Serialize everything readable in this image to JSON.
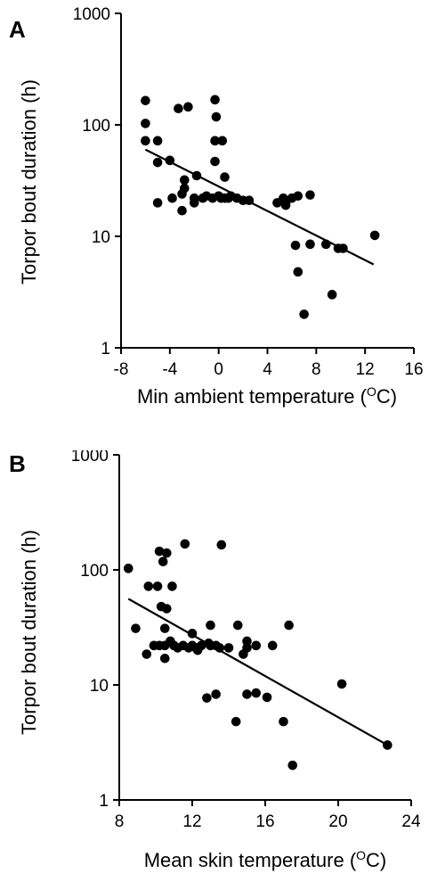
{
  "chart_data": [
    {
      "type": "scatter",
      "panel_label": "A",
      "title": "",
      "xlabel": "Min ambient temperature (",
      "xlabel_unit_o": "O",
      "xlabel_unit_c": "C)",
      "ylabel": "Torpor bout duration (h)",
      "xlim": [
        -8,
        16
      ],
      "ylim": [
        1,
        1000
      ],
      "yscale": "log",
      "x_ticks": [
        "-8",
        "-4",
        "0",
        "4",
        "8",
        "12",
        "16"
      ],
      "y_ticks": [
        "1",
        "10",
        "100",
        "1000"
      ],
      "grid": false,
      "points": [
        {
          "x": -6.0,
          "y": 165
        },
        {
          "x": -6.0,
          "y": 103
        },
        {
          "x": -6.0,
          "y": 72
        },
        {
          "x": -5.0,
          "y": 72
        },
        {
          "x": -5.0,
          "y": 46
        },
        {
          "x": -5.0,
          "y": 20
        },
        {
          "x": -4.0,
          "y": 48
        },
        {
          "x": -3.8,
          "y": 22
        },
        {
          "x": -3.3,
          "y": 140
        },
        {
          "x": -3.0,
          "y": 24
        },
        {
          "x": -3.0,
          "y": 17
        },
        {
          "x": -2.8,
          "y": 32
        },
        {
          "x": -2.8,
          "y": 27
        },
        {
          "x": -2.5,
          "y": 145
        },
        {
          "x": -2.0,
          "y": 22
        },
        {
          "x": -2.0,
          "y": 20
        },
        {
          "x": -1.8,
          "y": 35
        },
        {
          "x": -1.3,
          "y": 22
        },
        {
          "x": -1.0,
          "y": 23
        },
        {
          "x": -0.5,
          "y": 22
        },
        {
          "x": -0.3,
          "y": 168
        },
        {
          "x": -0.2,
          "y": 118
        },
        {
          "x": -0.3,
          "y": 72
        },
        {
          "x": -0.3,
          "y": 47
        },
        {
          "x": 0.0,
          "y": 23
        },
        {
          "x": 0.2,
          "y": 22
        },
        {
          "x": 0.3,
          "y": 72
        },
        {
          "x": 0.5,
          "y": 34
        },
        {
          "x": 0.5,
          "y": 22
        },
        {
          "x": 0.8,
          "y": 22
        },
        {
          "x": 1.0,
          "y": 23
        },
        {
          "x": 1.5,
          "y": 22
        },
        {
          "x": 2.0,
          "y": 21
        },
        {
          "x": 2.5,
          "y": 21
        },
        {
          "x": 4.8,
          "y": 20
        },
        {
          "x": 5.3,
          "y": 22
        },
        {
          "x": 5.5,
          "y": 20
        },
        {
          "x": 5.5,
          "y": 19
        },
        {
          "x": 6.0,
          "y": 22
        },
        {
          "x": 6.5,
          "y": 23
        },
        {
          "x": 6.3,
          "y": 8.3
        },
        {
          "x": 6.5,
          "y": 4.8
        },
        {
          "x": 7.0,
          "y": 2.0
        },
        {
          "x": 7.5,
          "y": 8.5
        },
        {
          "x": 7.5,
          "y": 23.5
        },
        {
          "x": 8.8,
          "y": 8.5
        },
        {
          "x": 9.3,
          "y": 3.0
        },
        {
          "x": 9.8,
          "y": 7.8
        },
        {
          "x": 10.2,
          "y": 7.8
        },
        {
          "x": 12.8,
          "y": 10.2
        }
      ],
      "trendline": {
        "x": [
          -6.0,
          12.7
        ],
        "y": [
          60,
          5.6
        ]
      }
    },
    {
      "type": "scatter",
      "panel_label": "B",
      "title": "",
      "xlabel": "Mean skin temperature (",
      "xlabel_unit_o": "O",
      "xlabel_unit_c": "C)",
      "ylabel": "Torpor bout duration (h)",
      "xlim": [
        8,
        24
      ],
      "ylim": [
        1,
        1000
      ],
      "yscale": "log",
      "x_ticks": [
        "8",
        "12",
        "16",
        "20",
        "24"
      ],
      "y_ticks": [
        "1",
        "10",
        "100",
        "1000"
      ],
      "grid": false,
      "points": [
        {
          "x": 8.5,
          "y": 103
        },
        {
          "x": 8.9,
          "y": 31
        },
        {
          "x": 9.5,
          "y": 18.5
        },
        {
          "x": 9.6,
          "y": 72
        },
        {
          "x": 9.9,
          "y": 22
        },
        {
          "x": 10.1,
          "y": 72
        },
        {
          "x": 10.2,
          "y": 145
        },
        {
          "x": 10.2,
          "y": 22
        },
        {
          "x": 10.3,
          "y": 48
        },
        {
          "x": 10.4,
          "y": 118
        },
        {
          "x": 10.5,
          "y": 31
        },
        {
          "x": 10.5,
          "y": 17
        },
        {
          "x": 10.5,
          "y": 22
        },
        {
          "x": 10.6,
          "y": 140
        },
        {
          "x": 10.6,
          "y": 46
        },
        {
          "x": 10.8,
          "y": 24
        },
        {
          "x": 10.9,
          "y": 72
        },
        {
          "x": 11.0,
          "y": 22
        },
        {
          "x": 11.2,
          "y": 21
        },
        {
          "x": 11.5,
          "y": 22
        },
        {
          "x": 11.6,
          "y": 168
        },
        {
          "x": 11.8,
          "y": 21
        },
        {
          "x": 12.0,
          "y": 28
        },
        {
          "x": 12.0,
          "y": 22
        },
        {
          "x": 12.2,
          "y": 21
        },
        {
          "x": 12.3,
          "y": 20
        },
        {
          "x": 12.5,
          "y": 22
        },
        {
          "x": 12.8,
          "y": 7.7
        },
        {
          "x": 12.9,
          "y": 23
        },
        {
          "x": 13.0,
          "y": 22
        },
        {
          "x": 13.0,
          "y": 33
        },
        {
          "x": 13.3,
          "y": 8.3
        },
        {
          "x": 13.3,
          "y": 22
        },
        {
          "x": 13.5,
          "y": 21
        },
        {
          "x": 13.6,
          "y": 165
        },
        {
          "x": 14.0,
          "y": 21
        },
        {
          "x": 14.4,
          "y": 4.8
        },
        {
          "x": 14.5,
          "y": 33
        },
        {
          "x": 14.8,
          "y": 18.5
        },
        {
          "x": 15.0,
          "y": 21
        },
        {
          "x": 15.0,
          "y": 24
        },
        {
          "x": 15.0,
          "y": 8.3
        },
        {
          "x": 15.5,
          "y": 8.5
        },
        {
          "x": 15.5,
          "y": 22
        },
        {
          "x": 16.1,
          "y": 7.8
        },
        {
          "x": 16.4,
          "y": 22
        },
        {
          "x": 17.0,
          "y": 4.8
        },
        {
          "x": 17.3,
          "y": 33
        },
        {
          "x": 17.5,
          "y": 2.0
        },
        {
          "x": 20.2,
          "y": 10.2
        },
        {
          "x": 22.7,
          "y": 3.0
        }
      ],
      "trendline": {
        "x": [
          8.5,
          22.7
        ],
        "y": [
          56,
          3.0
        ]
      }
    }
  ]
}
